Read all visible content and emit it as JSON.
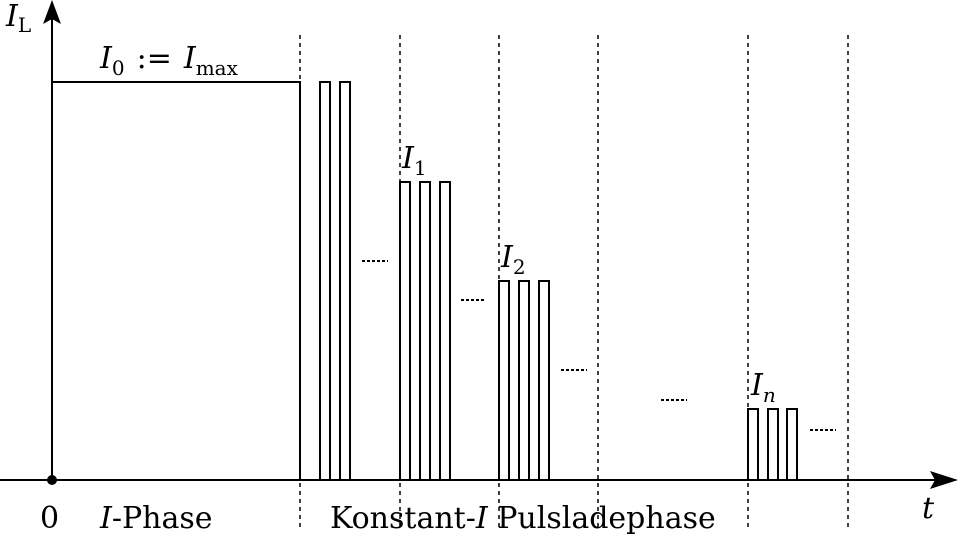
{
  "axes": {
    "y_label": {
      "symbol": "I",
      "sub": "L"
    },
    "x_label": "t",
    "origin": "0"
  },
  "levels": {
    "i0": {
      "symbol": "I",
      "sub": "0",
      "op": ":=",
      "symbol2": "I",
      "sub2": "max"
    },
    "i1": {
      "symbol": "I",
      "sub": "1"
    },
    "i2": {
      "symbol": "I",
      "sub": "2"
    },
    "in": {
      "symbol": "I",
      "sub": "n"
    }
  },
  "phases": {
    "first": {
      "symbol": "I",
      "rest": "-Phase"
    },
    "second": {
      "pre": "Konstant-",
      "symbol": "I",
      "rest": " Pulsladephase"
    }
  }
}
